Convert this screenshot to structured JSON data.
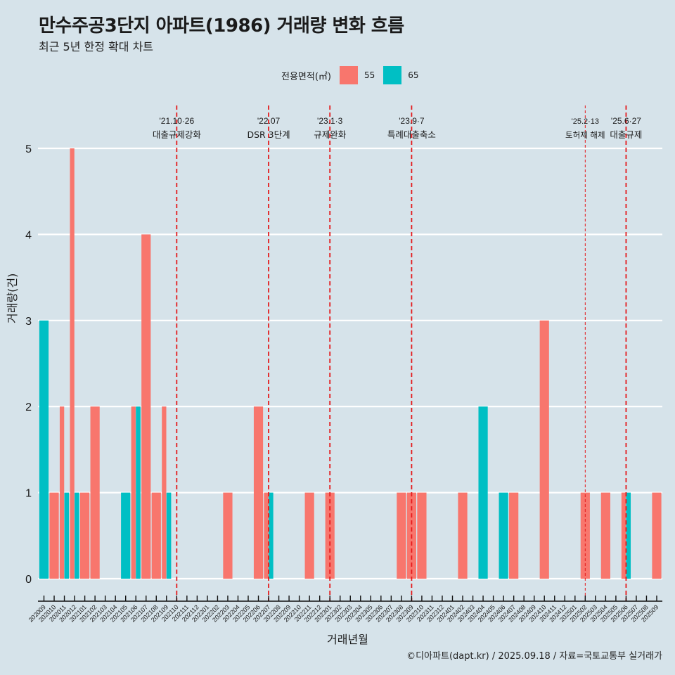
{
  "chart_data": {
    "type": "bar",
    "title": "만수주공3단지 아파트(1986) 거래량 변화 흐름",
    "subtitle": "최근 5년 한정 확대 차트",
    "xlabel": "거래년월",
    "ylabel": "거래량(건)",
    "ylim": [
      0,
      5
    ],
    "yticks": [
      0,
      1,
      2,
      3,
      4,
      5
    ],
    "grid": true,
    "legend": {
      "title": "전용면적(㎡)",
      "position": "top",
      "entries": [
        {
          "name": "55",
          "color": "#f8766d"
        },
        {
          "name": "65",
          "color": "#00bfc4"
        }
      ]
    },
    "categories": [
      "202009",
      "202010",
      "202011",
      "202012",
      "202101",
      "202102",
      "202103",
      "202104",
      "202105",
      "202106",
      "202107",
      "202108",
      "202109",
      "202110",
      "202111",
      "202112",
      "202201",
      "202202",
      "202203",
      "202204",
      "202205",
      "202206",
      "202207",
      "202208",
      "202209",
      "202210",
      "202211",
      "202212",
      "202301",
      "202302",
      "202303",
      "202304",
      "202305",
      "202306",
      "202307",
      "202308",
      "202309",
      "202310",
      "202311",
      "202312",
      "202401",
      "202402",
      "202403",
      "202404",
      "202405",
      "202406",
      "202407",
      "202408",
      "202409",
      "202410",
      "202411",
      "202412",
      "202501",
      "202502",
      "202503",
      "202504",
      "202505",
      "202506",
      "202507",
      "202508",
      "202509"
    ],
    "series": [
      {
        "name": "55",
        "color": "#f8766d",
        "values": {
          "202010": 1,
          "202011": 2,
          "202012": 5,
          "202101": 1,
          "202102": 2,
          "202106": 2,
          "202107": 4,
          "202108": 1,
          "202109": 2,
          "202203": 1,
          "202206": 2,
          "202207": 1,
          "202211": 1,
          "202301": 1,
          "202308": 1,
          "202309": 1,
          "202310": 1,
          "202402": 1,
          "202407": 1,
          "202410": 3,
          "202502": 1,
          "202504": 1,
          "202506": 1,
          "202509": 1
        }
      },
      {
        "name": "65",
        "color": "#00bfc4",
        "values": {
          "202009": 3,
          "202011": 1,
          "202012": 1,
          "202105": 1,
          "202106": 2,
          "202109": 1,
          "202207": 1,
          "202404": 2,
          "202406": 1,
          "202506": 1
        }
      }
    ],
    "annotations": [
      {
        "month": "202110",
        "date": "'21.10·26",
        "label": "대출규제강화",
        "style": "dashed"
      },
      {
        "month": "202207",
        "date": "'22.07",
        "label": "DSR 3단계",
        "style": "dashed"
      },
      {
        "month": "202301",
        "date": "'23.1·3",
        "label": "규제완화",
        "style": "dashed"
      },
      {
        "month": "202309",
        "date": "'23.9·7",
        "label": "특례대출축소",
        "style": "dashed"
      },
      {
        "month": "202502",
        "date": "'25.2·13",
        "label": "토허제 해제",
        "style": "thin-dashed"
      },
      {
        "month": "202506",
        "date": "'25.6·27",
        "label": "대출규제",
        "style": "dashed"
      }
    ],
    "annotation_color": "#e41a1c"
  },
  "caption": "©디아파트(dapt.kr) / 2025.09.18 / 자료=국토교통부 실거래가"
}
